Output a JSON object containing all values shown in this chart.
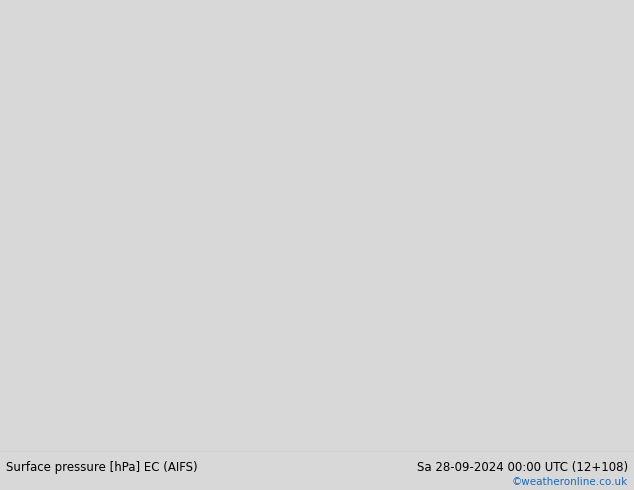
{
  "title_left": "Surface pressure [hPa] EC (AIFS)",
  "title_right": "Sa 28-09-2024 00:00 UTC (12+108)",
  "copyright": "©weatheronline.co.uk",
  "land_color": "#c8e8a0",
  "sea_color": "#d8d8d8",
  "fig_width": 6.34,
  "fig_height": 4.9,
  "dpi": 100,
  "bottom_bar_color": "#ffffff",
  "text_color": "#000000",
  "copyright_color": "#1a6abf",
  "map_extent": [
    99,
    185,
    -55,
    10
  ],
  "font_size_bottom": 8.5,
  "font_size_labels": 7
}
